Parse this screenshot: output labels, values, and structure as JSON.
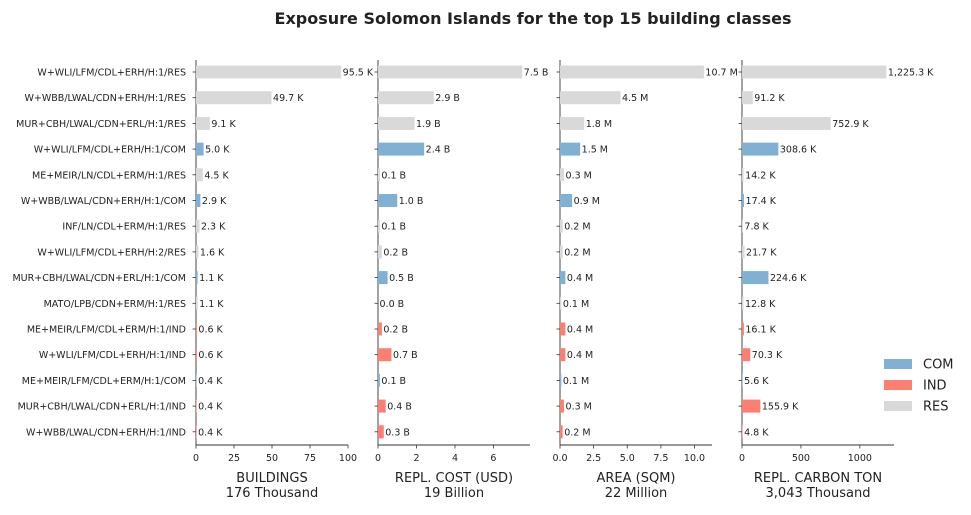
{
  "chart_data": {
    "type": "bar",
    "orientation": "horizontal",
    "title": "Exposure Solomon Islands for the top 15 building classes",
    "categories": [
      "W+WLI/LFM/CDL+ERH/H:1/RES",
      "W+WBB/LWAL/CDN+ERH/H:1/RES",
      "MUR+CBH/LWAL/CDN+ERL/H:1/RES",
      "W+WLI/LFM/CDL+ERH/H:1/COM",
      "ME+MEIR/LN/CDL+ERM/H:1/RES",
      "W+WBB/LWAL/CDN+ERH/H:1/COM",
      "INF/LN/CDL+ERM/H:1/RES",
      "W+WLI/LFM/CDL+ERH/H:2/RES",
      "MUR+CBH/LWAL/CDN+ERL/H:1/COM",
      "MATO/LPB/CDN+ERM/H:1/RES",
      "ME+MEIR/LFM/CDL+ERM/H:1/IND",
      "W+WLI/LFM/CDL+ERH/H:1/IND",
      "ME+MEIR/LFM/CDL+ERM/H:1/COM",
      "MUR+CBH/LWAL/CDN+ERL/H:1/IND",
      "W+WBB/LWAL/CDN+ERH/H:1/IND"
    ],
    "occupancy": [
      "RES",
      "RES",
      "RES",
      "COM",
      "RES",
      "COM",
      "RES",
      "RES",
      "COM",
      "RES",
      "IND",
      "IND",
      "COM",
      "IND",
      "IND"
    ],
    "colors": {
      "COM": "#80b1d3",
      "IND": "#fb8072",
      "RES": "#d9d9d9"
    },
    "legend": {
      "position": "right",
      "entries": [
        "COM",
        "IND",
        "RES"
      ]
    },
    "grid": false,
    "panels": [
      {
        "xlabel": "BUILDINGS",
        "total": "176 Thousand",
        "xlim": [
          0,
          100
        ],
        "ticks": [
          "0",
          "25",
          "50",
          "75",
          "100"
        ],
        "tick_values": [
          0,
          25,
          50,
          75,
          100
        ],
        "values": [
          95.5,
          49.7,
          9.1,
          5.0,
          4.5,
          2.9,
          2.3,
          1.6,
          1.1,
          1.1,
          0.6,
          0.6,
          0.4,
          0.4,
          0.4
        ],
        "labels": [
          "95.5 K",
          "49.7 K",
          "9.1 K",
          "5.0 K",
          "4.5 K",
          "2.9 K",
          "2.3 K",
          "1.6 K",
          "1.1 K",
          "1.1 K",
          "0.6 K",
          "0.6 K",
          "0.4 K",
          "0.4 K",
          "0.4 K"
        ]
      },
      {
        "xlabel": "REPL. COST (USD)",
        "total": "19 Billion",
        "xlim": [
          0,
          7.9
        ],
        "ticks": [
          "0",
          "2",
          "4",
          "6"
        ],
        "tick_values": [
          0,
          2,
          4,
          6
        ],
        "values": [
          7.5,
          2.9,
          1.9,
          2.4,
          0.1,
          1.0,
          0.1,
          0.2,
          0.5,
          0.0,
          0.2,
          0.7,
          0.1,
          0.4,
          0.3
        ],
        "labels": [
          "7.5 B",
          "2.9 B",
          "1.9 B",
          "2.4 B",
          "0.1 B",
          "1.0 B",
          "0.1 B",
          "0.2 B",
          "0.5 B",
          "0.0 B",
          "0.2 B",
          "0.7 B",
          "0.1 B",
          "0.4 B",
          "0.3 B"
        ]
      },
      {
        "xlabel": "AREA (SQM)",
        "total": "22 Million",
        "xlim": [
          0,
          11.3
        ],
        "ticks": [
          "0.0",
          "2.5",
          "5.0",
          "7.5",
          "10.0"
        ],
        "tick_values": [
          0,
          2.5,
          5,
          7.5,
          10
        ],
        "values": [
          10.7,
          4.5,
          1.8,
          1.5,
          0.3,
          0.9,
          0.2,
          0.2,
          0.4,
          0.1,
          0.4,
          0.4,
          0.1,
          0.3,
          0.2
        ],
        "labels": [
          "10.7 M",
          "4.5 M",
          "1.8 M",
          "1.5 M",
          "0.3 M",
          "0.9 M",
          "0.2 M",
          "0.2 M",
          "0.4 M",
          "0.1 M",
          "0.4 M",
          "0.4 M",
          "0.1 M",
          "0.3 M",
          "0.2 M"
        ]
      },
      {
        "xlabel": "REPL. CARBON TON",
        "total": "3,043 Thousand",
        "xlim": [
          0,
          1290
        ],
        "ticks": [
          "0",
          "500",
          "1000"
        ],
        "tick_values": [
          0,
          500,
          1000
        ],
        "values": [
          1225.3,
          91.2,
          752.9,
          308.6,
          14.2,
          17.4,
          7.8,
          21.7,
          224.6,
          12.8,
          16.1,
          70.3,
          5.6,
          155.9,
          4.8
        ],
        "labels": [
          "1,225.3 K",
          "91.2 K",
          "752.9 K",
          "308.6 K",
          "14.2 K",
          "17.4 K",
          "7.8 K",
          "21.7 K",
          "224.6 K",
          "12.8 K",
          "16.1 K",
          "70.3 K",
          "5.6 K",
          "155.9 K",
          "4.8 K"
        ]
      }
    ]
  }
}
